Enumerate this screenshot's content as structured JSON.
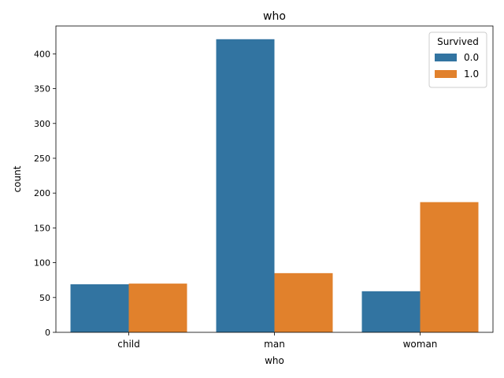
{
  "chart_data": {
    "type": "bar",
    "title": "who",
    "xlabel": "who",
    "ylabel": "count",
    "categories": [
      "child",
      "man",
      "woman"
    ],
    "series": [
      {
        "name": "0.0",
        "color": "#3274a1",
        "values": [
          69,
          421,
          59
        ]
      },
      {
        "name": "1.0",
        "color": "#e1812c",
        "values": [
          70,
          85,
          187
        ]
      }
    ],
    "ylim": [
      0,
      440
    ],
    "yticks": [
      0,
      50,
      100,
      150,
      200,
      250,
      300,
      350,
      400
    ],
    "grid": false,
    "legend": {
      "title": "Survived",
      "placement": "top-right"
    }
  }
}
